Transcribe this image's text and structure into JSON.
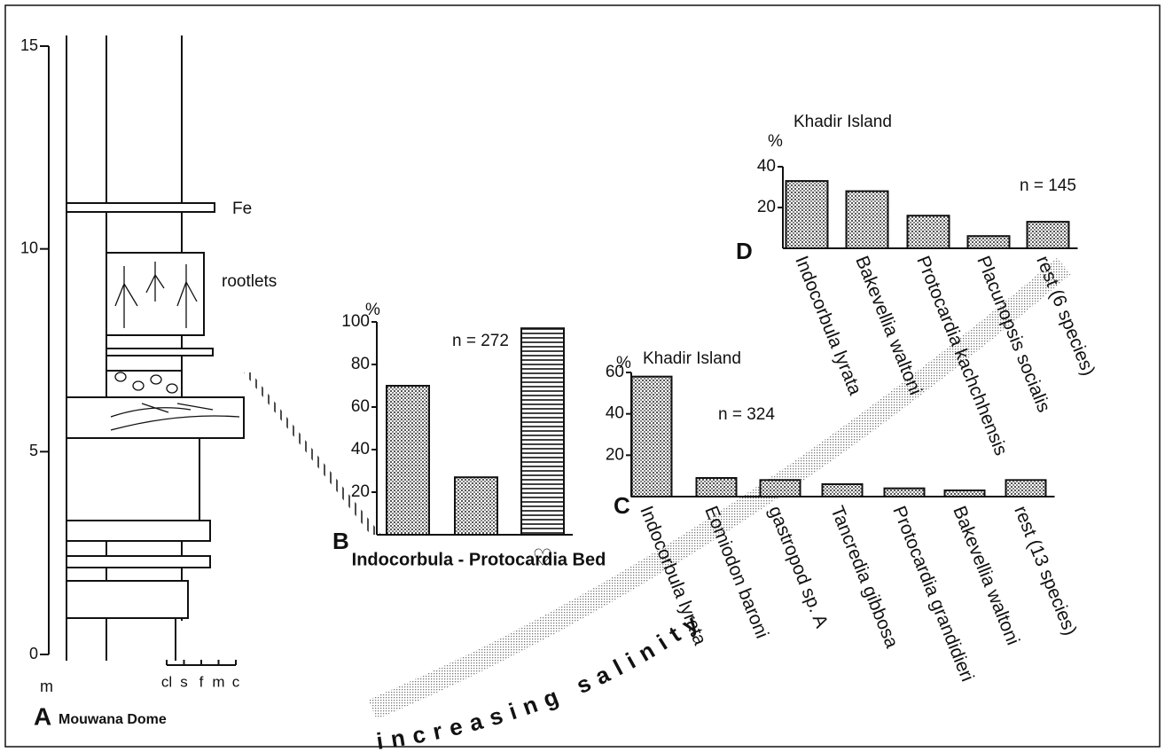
{
  "section": {
    "panel": "A",
    "title": "Mouwana Dome",
    "unit": "m",
    "ylim": [
      0,
      15
    ],
    "yticks": [
      0,
      5,
      10,
      15
    ],
    "grain_sizes": [
      "cl",
      "s",
      "f",
      "m",
      "c"
    ],
    "labels": [
      "Fe",
      "rootlets"
    ]
  },
  "chart_data": [
    {
      "type": "bar",
      "panel": "B",
      "title": "Indocorbula - Protocardia Bed",
      "ylabel": "%",
      "annotation": "n = 272",
      "categories": [
        null,
        null,
        "♡"
      ],
      "values": [
        70,
        27,
        97
      ],
      "patterns": [
        "dots",
        "dots",
        "stripes"
      ],
      "ylim": [
        0,
        100
      ],
      "yticks": [
        20,
        40,
        60,
        80,
        100
      ]
    },
    {
      "type": "bar",
      "panel": "C",
      "title": "Khadir Island",
      "ylabel": "%",
      "annotation": "n = 324",
      "categories": [
        "Indocorbula lyrata",
        "Eomiodon baroni",
        "gastropod sp. A",
        "Tancredia gibbosa",
        "Protocardia grandidieri",
        "Bakevellia waltoni",
        "rest (13 species)"
      ],
      "values": [
        58,
        9,
        8,
        6,
        4,
        3,
        8
      ],
      "pattern": "dots",
      "ylim": [
        0,
        60
      ],
      "yticks": [
        20,
        40,
        60
      ]
    },
    {
      "type": "bar",
      "panel": "D",
      "title": "Khadir Island",
      "ylabel": "%",
      "annotation": "n = 145",
      "categories": [
        "Indocorbula lyrata",
        "Bakevellia waltoni",
        "Protocardia kachchhensis",
        "Placunopsis socialis",
        "rest (6 species)"
      ],
      "values": [
        33,
        28,
        16,
        6,
        13
      ],
      "pattern": "dots",
      "ylim": [
        0,
        40
      ],
      "yticks": [
        20,
        40
      ]
    }
  ],
  "annotation": "increasing salinity"
}
